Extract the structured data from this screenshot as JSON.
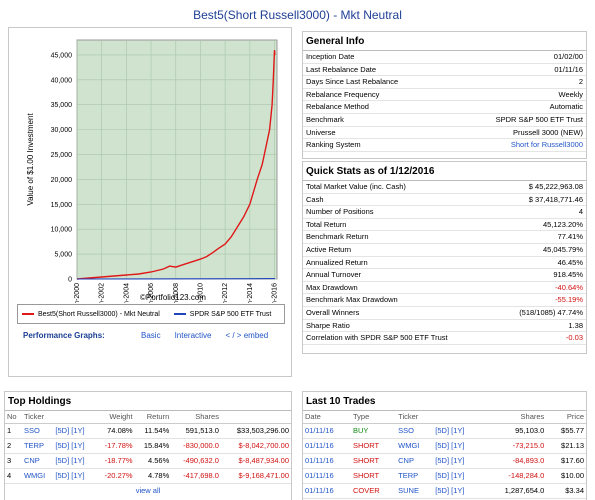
{
  "title": "Best5(Short Russell3000) - Mkt Neutral",
  "colors": {
    "accent": "#1f3f95",
    "link": "#2154c7",
    "negative": "#d01212",
    "buy": "#138a13"
  },
  "chart_data": {
    "type": "line",
    "ylabel": "Value of $1.00 Investment",
    "yticks": [
      "0",
      "5,000",
      "10,000",
      "15,000",
      "20,000",
      "25,000",
      "30,000",
      "35,000",
      "40,000",
      "45,000"
    ],
    "xticks": [
      "Jan-2000",
      "Jan-2002",
      "Jan-2004",
      "Jan-2006",
      "Jan-2008",
      "Jan-2010",
      "Jan-2012",
      "Jan-2014",
      "Jan-2016"
    ],
    "ylim": [
      0,
      48000
    ],
    "xlim": [
      2000,
      2016.2
    ],
    "grid": true,
    "watermark": "©Portfolio123.com",
    "series": [
      {
        "name": "Best5(Short Russell3000) - Mkt Neutral",
        "color": "#e01818",
        "x": [
          2000,
          2001,
          2002,
          2003,
          2004,
          2005,
          2006,
          2007,
          2007.5,
          2008,
          2008.5,
          2009,
          2009.5,
          2010,
          2010.5,
          2011,
          2011.5,
          2012,
          2012.5,
          2013,
          2013.5,
          2014,
          2014.3,
          2014.6,
          2015,
          2015.3,
          2015.6,
          2015.8,
          2015.9,
          2016,
          2016.03
        ],
        "y": [
          0,
          200,
          400,
          600,
          800,
          1000,
          1400,
          2000,
          2600,
          2400,
          2800,
          3200,
          3600,
          4000,
          4500,
          5300,
          6200,
          7000,
          8500,
          10500,
          12500,
          15000,
          17500,
          20000,
          23000,
          26500,
          30000,
          35000,
          40000,
          46000,
          45000
        ]
      },
      {
        "name": "SPDR S&P 500 ETF Trust",
        "color": "#2244bb",
        "x": [
          2000,
          2016.03
        ],
        "y": [
          0,
          77
        ]
      }
    ]
  },
  "performance": {
    "label": "Performance Graphs:",
    "links": [
      "Basic",
      "Interactive",
      "< / > embed"
    ]
  },
  "general_info": {
    "title": "General Info",
    "rows": [
      {
        "k": "Inception Date",
        "v": "01/02/00"
      },
      {
        "k": "Last Rebalance Date",
        "v": "01/11/16"
      },
      {
        "k": "Days Since Last Rebalance",
        "v": "2"
      },
      {
        "k": "Rebalance Frequency",
        "v": "Weekly"
      },
      {
        "k": "Rebalance Method",
        "v": "Automatic"
      },
      {
        "k": "Benchmark",
        "v": "SPDR S&P 500 ETF Trust"
      },
      {
        "k": "Universe",
        "v": "Prussell 3000 (NEW)"
      },
      {
        "k": "Ranking System",
        "v": "Short for Russell3000",
        "link": true
      }
    ]
  },
  "quick_stats": {
    "title": "Quick Stats as of 1/12/2016",
    "rows": [
      {
        "k": "Total Market Value (inc. Cash)",
        "v": "$ 45,222,963.08"
      },
      {
        "k": "Cash",
        "v": "$ 37,418,771.46"
      },
      {
        "k": "Number of Positions",
        "v": "4"
      },
      {
        "k": "Total Return",
        "v": "45,123.20%"
      },
      {
        "k": "Benchmark Return",
        "v": "77.41%"
      },
      {
        "k": "Active Return",
        "v": "45,045.79%"
      },
      {
        "k": "Annualized Return",
        "v": "46.45%"
      },
      {
        "k": "Annual Turnover",
        "v": "918.45%"
      },
      {
        "k": "Max Drawdown",
        "v": "-40.64%",
        "neg": true
      },
      {
        "k": "Benchmark Max Drawdown",
        "v": "-55.19%",
        "neg": true
      },
      {
        "k": "Overall Winners",
        "v": "(518/1085) 47.74%"
      },
      {
        "k": "Sharpe Ratio",
        "v": "1.38"
      },
      {
        "k": "Correlation with SPDR S&P 500 ETF Trust",
        "v": "-0.03",
        "neg": true
      }
    ]
  },
  "top_holdings": {
    "title": "Top Holdings",
    "headers": [
      "No",
      "Ticker",
      "",
      "Weight",
      "Return",
      "Shares",
      ""
    ],
    "rows": [
      {
        "no": "1",
        "ticker": "SSO",
        "links": "[5D] [1Y]",
        "weight": "74.08%",
        "ret": "11.54%",
        "shares": "591,513.0",
        "value": "$33,503,296.00",
        "neg": false
      },
      {
        "no": "2",
        "ticker": "TERP",
        "links": "[5D] [1Y]",
        "weight": "-17.78%",
        "ret": "15.84%",
        "shares": "-830,000.0",
        "value": "$-8,042,700.00",
        "neg": true
      },
      {
        "no": "3",
        "ticker": "CNP",
        "links": "[5D] [1Y]",
        "weight": "-18.77%",
        "ret": "4.56%",
        "shares": "-490,632.0",
        "value": "$-8,487,934.00",
        "neg": true
      },
      {
        "no": "4",
        "ticker": "WMGI",
        "links": "[5D] [1Y]",
        "weight": "-20.27%",
        "ret": "4.78%",
        "shares": "-417,698.0",
        "value": "$-9,168,471.00",
        "neg": true
      }
    ],
    "view_all": "view all"
  },
  "last_trades": {
    "title": "Last 10 Trades",
    "headers": [
      "Date",
      "Type",
      "Ticker",
      "",
      "Shares",
      "Price"
    ],
    "rows": [
      {
        "date": "01/11/16",
        "type": "BUY",
        "ticker": "SSO",
        "links": "[5D] [1Y]",
        "shares": "95,103.0",
        "price": "$55.77",
        "neg": false
      },
      {
        "date": "01/11/16",
        "type": "SHORT",
        "ticker": "WMGI",
        "links": "[5D] [1Y]",
        "shares": "-73,215.0",
        "price": "$21.13",
        "neg": true
      },
      {
        "date": "01/11/16",
        "type": "SHORT",
        "ticker": "CNP",
        "links": "[5D] [1Y]",
        "shares": "-84,893.0",
        "price": "$17.60",
        "neg": true
      },
      {
        "date": "01/11/16",
        "type": "SHORT",
        "ticker": "TERP",
        "links": "[5D] [1Y]",
        "shares": "-148,284.0",
        "price": "$10.00",
        "neg": true
      },
      {
        "date": "01/11/16",
        "type": "COVER",
        "ticker": "SUNE",
        "links": "[5D] [1Y]",
        "shares": "1,287,654.0",
        "price": "$3.34",
        "neg": false
      }
    ]
  }
}
